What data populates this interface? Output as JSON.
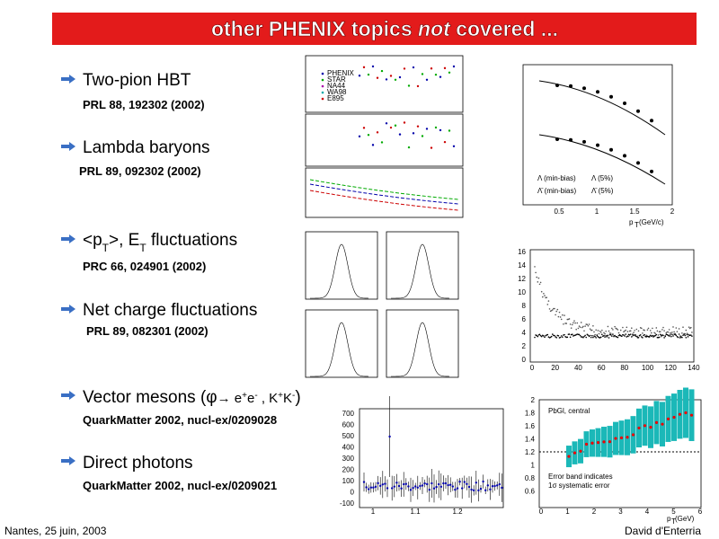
{
  "header": {
    "title": {
      "pre": "other PHENIX topics ",
      "em": "not",
      "post": " covered ..."
    }
  },
  "bullets": [
    {
      "label": "Two-pion HBT",
      "ref": "PRL 88, 192302 (2002)"
    },
    {
      "label": "Lambda baryons",
      "ref": "PRL 89, 092302 (2002)"
    },
    {
      "label": [
        "<p",
        "T",
        ">, E",
        "T",
        " fluctuations"
      ],
      "ref": "PRC 66, 024901 (2002)"
    },
    {
      "label": "Net charge fluctuations",
      "ref": "PRL 89, 082301 (2002)"
    },
    {
      "label": [
        "Vector mesons (",
        "φ",
        "→ e",
        "+",
        "e",
        "-",
        " , K",
        "+",
        "K",
        "-",
        ")"
      ],
      "ref": "QuarkMatter 2002, nucl-ex/0209028"
    },
    {
      "label": "Direct photons",
      "ref": "QuarkMatter 2002, nucl-ex/0209021"
    }
  ],
  "figures": {
    "hbt": {
      "legend": [
        "PHENIX",
        "STAR",
        "NA44",
        "WA98",
        "E895"
      ]
    },
    "lambda": {
      "x_label": [
        "p",
        "T",
        " (GeV/c)"
      ],
      "x_ticks": [
        "0.5",
        "1",
        "1.5",
        "2"
      ],
      "legend": [
        "Λ (min-bias)",
        "Λ (5%)",
        "Λ̄ (min-bias)",
        "Λ̄ (5%)"
      ]
    },
    "fluctuation": {
      "x_ticks": [
        "0",
        "20",
        "40",
        "60",
        "80",
        "100",
        "120",
        "140"
      ],
      "y_ticks": [
        "16",
        "14",
        "12",
        "10",
        "8",
        "6",
        "4",
        "2",
        "0"
      ]
    },
    "vector_meson": {
      "y_ticks": [
        "700",
        "600",
        "500",
        "400",
        "300",
        "200",
        "100",
        "0",
        "-100"
      ],
      "x_ticks": [
        "1",
        "1.1",
        "1.2"
      ]
    },
    "direct_photon": {
      "notes": [
        "PbGl, central",
        "Error band indicates",
        "1σ systematic error"
      ],
      "y_ticks": [
        "2",
        "1.8",
        "1.6",
        "1.4",
        "1.2",
        "1",
        "0.8",
        "0.6"
      ],
      "x_ticks": [
        "0",
        "1",
        "2",
        "3",
        "4",
        "5",
        "6"
      ],
      "x_label": [
        "p",
        "T",
        " (GeV)"
      ]
    }
  },
  "footer": {
    "left": "Nantes, 25 juin, 2003",
    "right": "David d'Enterria"
  }
}
